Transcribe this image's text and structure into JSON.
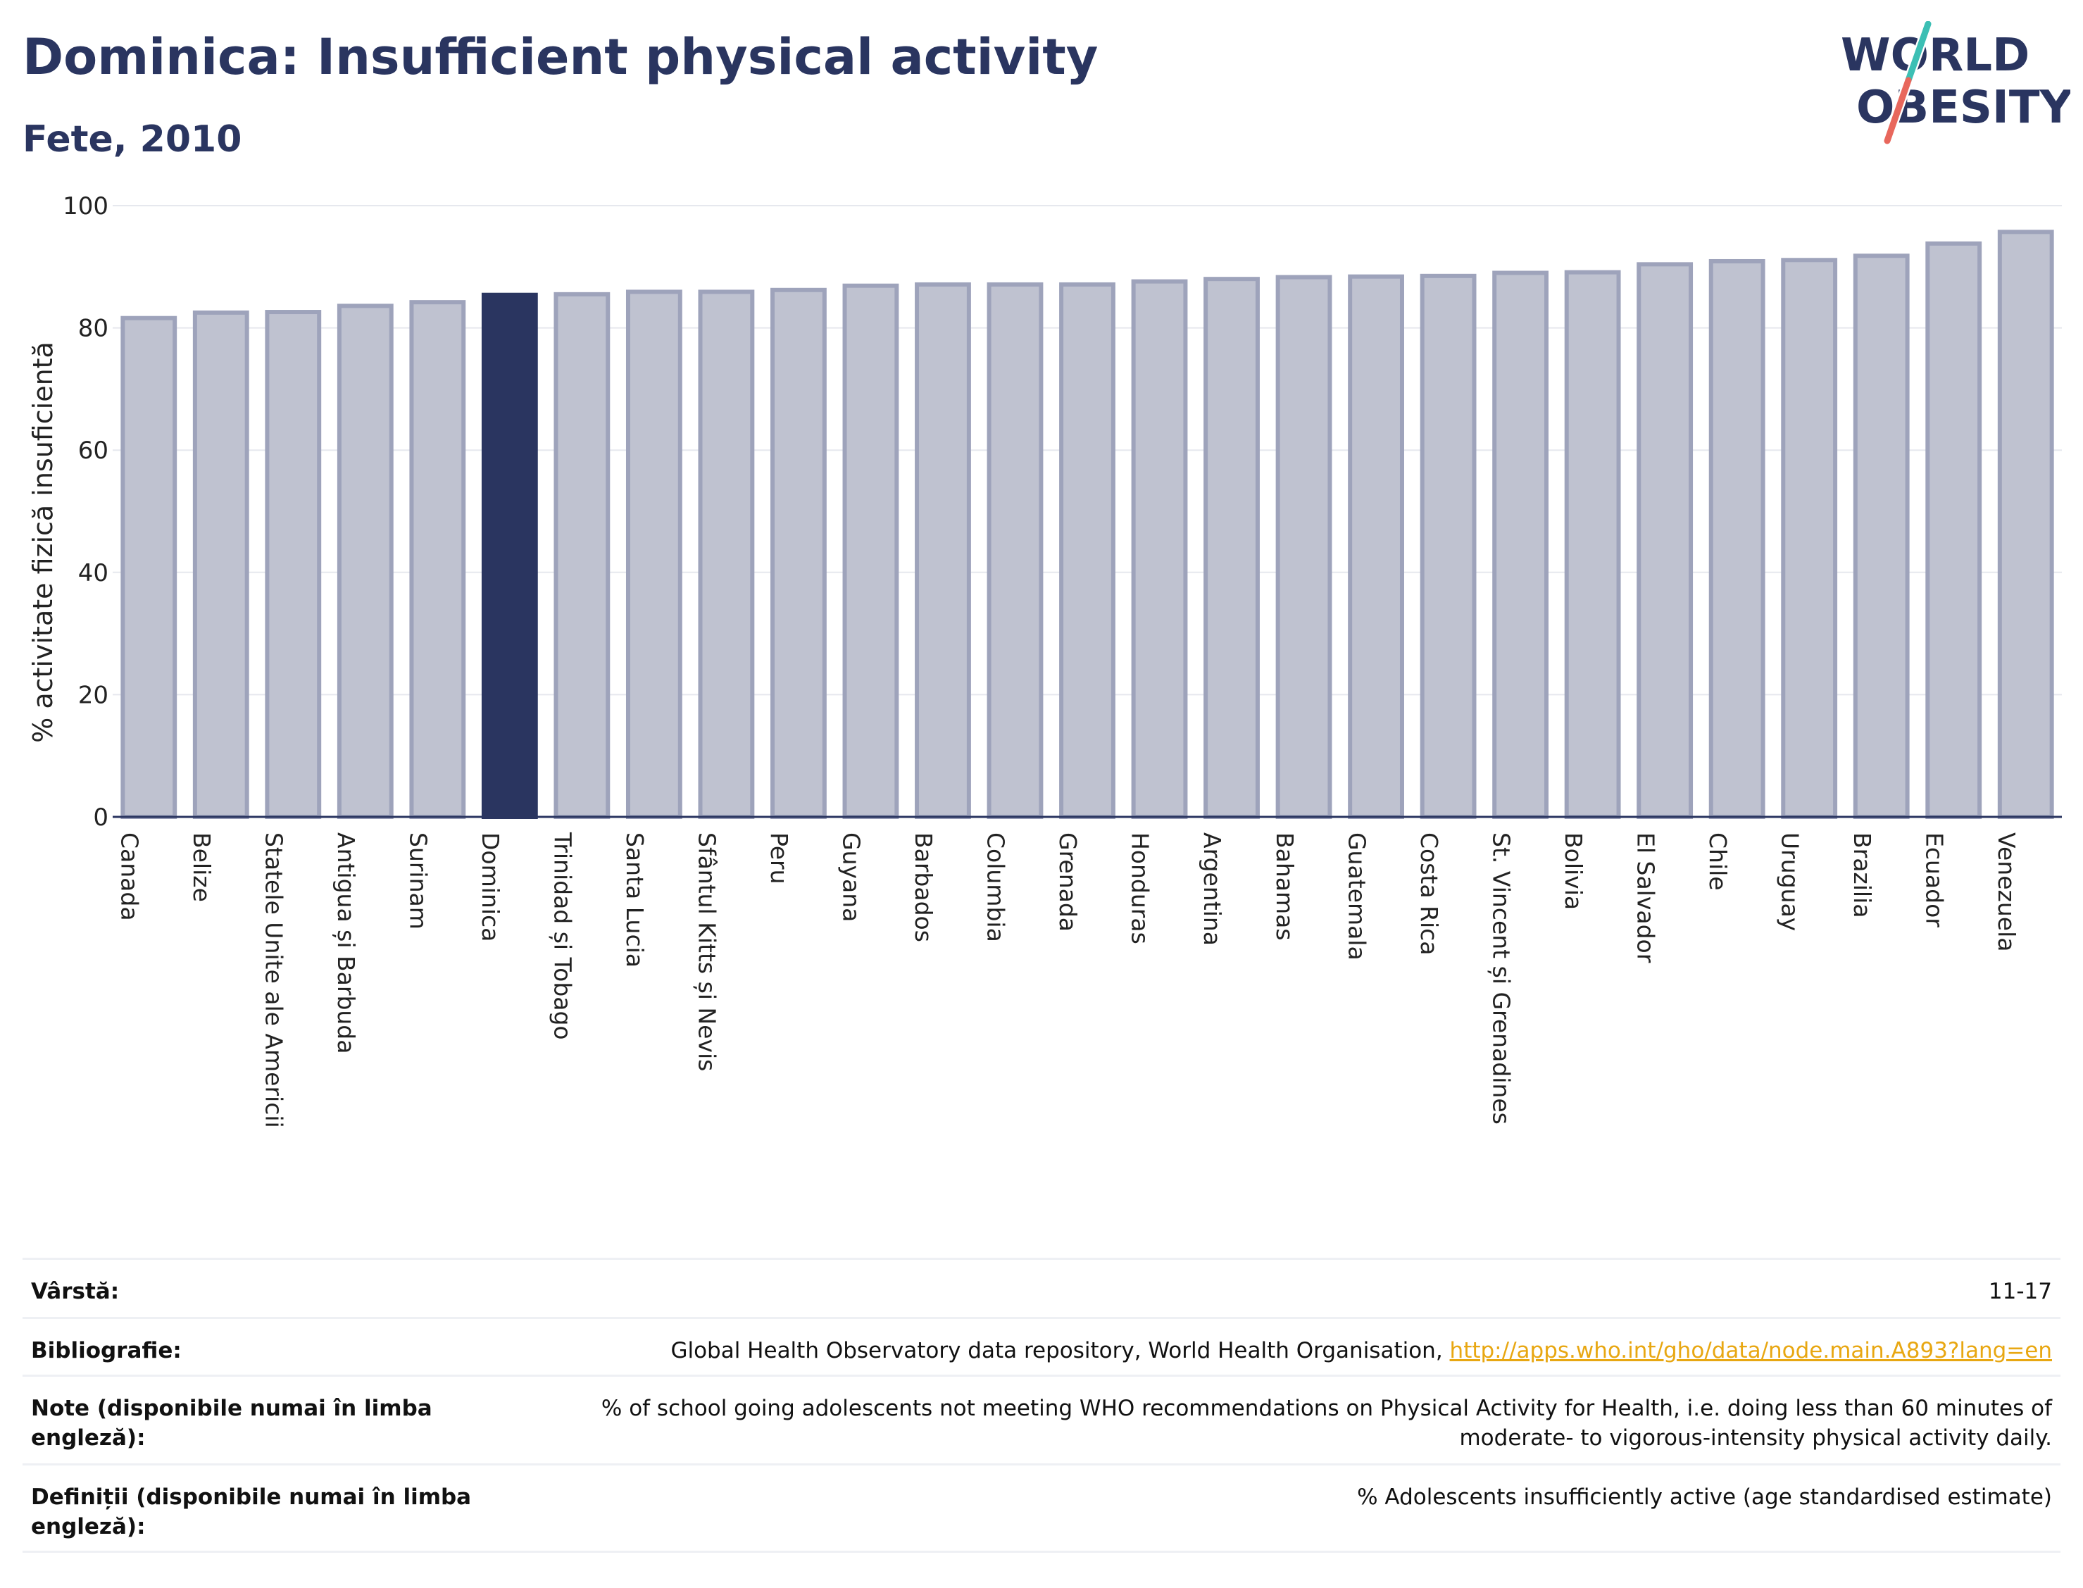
{
  "header": {
    "title": "Dominica: Insufficient physical activity",
    "subtitle": "Fete, 2010"
  },
  "logo": {
    "line1": "WORLD",
    "line2": "OBESITY"
  },
  "colors": {
    "highlight": "#2a3560",
    "bar_fill": "#bfc2d0",
    "bar_stroke": "#9ea3bb",
    "text": "#2a3560",
    "link": "#e8a712",
    "logo_teal": "#3cbfb4",
    "logo_red": "#e8675c"
  },
  "chart_data": {
    "type": "bar",
    "title": "Dominica: Insufficient physical activity",
    "subtitle": "Fete, 2010",
    "ylabel": "% activitate fizică insuficientă",
    "xlabel": "",
    "ylim": [
      0,
      100
    ],
    "yticks": [
      0,
      20,
      40,
      60,
      80,
      100
    ],
    "grid": true,
    "highlight": "Dominica",
    "categories": [
      "Canada",
      "Belize",
      "Statele Unite ale Americii",
      "Antigua și Barbuda",
      "Surinam",
      "Dominica",
      "Trinidad și Tobago",
      "Santa Lucia",
      "Sfântul Kitts și Nevis",
      "Peru",
      "Guyana",
      "Barbados",
      "Columbia",
      "Grenada",
      "Honduras",
      "Argentina",
      "Bahamas",
      "Guatemala",
      "Costa Rica",
      "St. Vincent și Grenadines",
      "Bolivia",
      "El Salvador",
      "Chile",
      "Uruguay",
      "Brazilia",
      "Ecuador",
      "Venezuela"
    ],
    "values": [
      81.6,
      82.5,
      82.6,
      83.6,
      84.2,
      85.4,
      85.5,
      85.9,
      85.9,
      86.2,
      86.9,
      87.1,
      87.1,
      87.1,
      87.6,
      88.0,
      88.3,
      88.4,
      88.5,
      89.0,
      89.1,
      90.4,
      90.9,
      91.1,
      91.8,
      93.8,
      95.7
    ]
  },
  "meta": {
    "age_label": "Vârstă:",
    "age_value": "11-17",
    "bib_label": "Bibliografie:",
    "bib_text": "Global Health Observatory data repository, World Health Organisation, ",
    "bib_link": "http://apps.who.int/gho/data/node.main.A893?lang=en",
    "notes_label": "Note (disponibile numai în limba engleză):",
    "notes_value": "% of school going adolescents not meeting WHO recommendations on Physical Activity for Health, i.e. doing less than 60 minutes of moderate- to vigorous-intensity physical activity daily.",
    "def_label": "Definiții (disponibile numai în limba engleză):",
    "def_value": "% Adolescents insufficiently active (age standardised estimate)"
  }
}
